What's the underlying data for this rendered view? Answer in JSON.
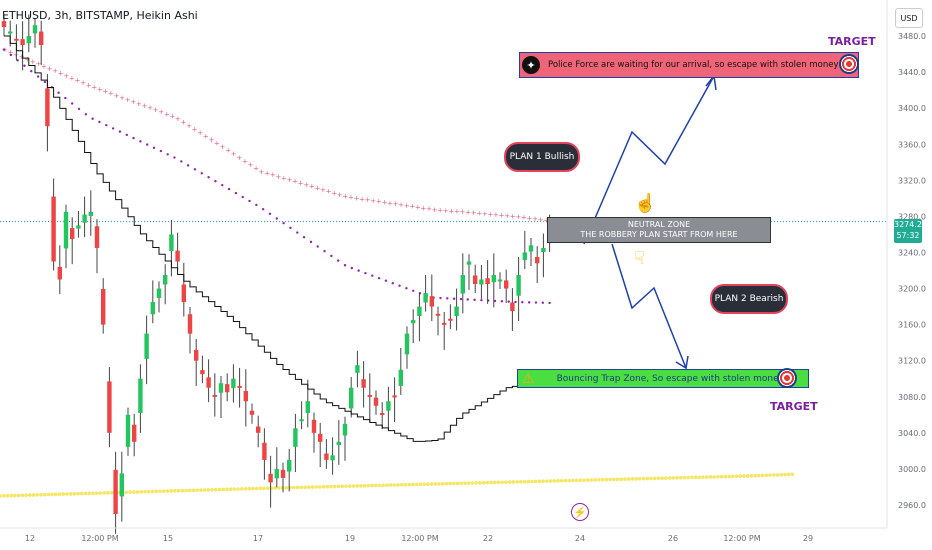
{
  "header": {
    "symbol": "ETHUSD",
    "interval": "3h",
    "exchange": "BITSTAMP",
    "chart_style": "Heikin Ashi",
    "separator": ", "
  },
  "currency": "USD",
  "price_tag": {
    "price": "3274.2",
    "countdown": "57:32"
  },
  "annotations": {
    "police_text": "Police Force are waiting for our arrival, so escape with stolen money",
    "target_top": "TARGET",
    "target_bottom": "TARGET",
    "plan1": "PLAN 1 Bullish",
    "plan2": "PLAN 2 Bearish",
    "neutral_line1": "NEUTRAL ZONE",
    "neutral_line2": "THE ROBBERY PLAN START FROM HERE",
    "trap_text": "Bouncing Trap Zone, So escape with stolen money"
  },
  "icons": {
    "robber": "robber-icon",
    "target": "target-icon",
    "hand_up": "hand-pointing-up-icon",
    "hand_down": "hand-pointing-down-icon",
    "warning": "warning-icon",
    "lightning": "lightning-icon"
  },
  "colors": {
    "up": "#26a69a",
    "bull_candle": "#22c55e",
    "bear_candle": "#ef4444",
    "ma_dots_purple": "#8e24aa",
    "ma_cross_pink": "#e0607e",
    "ma_dots_yellow": "#f5e663",
    "step_line": "#111111",
    "arrow_blue": "#1e40af",
    "police_box": "#f06478",
    "trap_box": "#4ade40",
    "neutral_box": "#8a8d94",
    "pill_bg": "#2a2e39",
    "current_price": "#22ab94"
  },
  "chart_data": {
    "type": "candlestick",
    "title": "",
    "ylim": [
      2940,
      3500
    ],
    "y_ticks": [
      2960,
      3000,
      3040,
      3080,
      3120,
      3160,
      3200,
      3240,
      3280,
      3320,
      3360,
      3400,
      3440,
      3480
    ],
    "x_ticks": [
      "12",
      "12:00 PM",
      "15",
      "17",
      "19",
      "12:00 PM",
      "22",
      "24",
      "26",
      "12:00 PM",
      "29"
    ],
    "current_price": 3274.2,
    "series_close": [
      3490,
      3485,
      3475,
      3470,
      3480,
      3492,
      3470,
      3380,
      3230,
      3210,
      3285,
      3255,
      3270,
      3282,
      3285,
      3245,
      3160,
      3040,
      2950,
      2995,
      3060,
      3030,
      3100,
      3150,
      3185,
      3200,
      3215,
      3260,
      3230,
      3185,
      3150,
      3120,
      3105,
      3090,
      3080,
      3095,
      3085,
      3100,
      3090,
      3075,
      3060,
      3040,
      3010,
      2985,
      3000,
      2990,
      3010,
      3045,
      3055,
      3075,
      3040,
      3030,
      3010,
      3015,
      3030,
      3050,
      3090,
      3115,
      3090,
      3080,
      3070,
      3060,
      3075,
      3080,
      3110,
      3150,
      3165,
      3180,
      3195,
      3180,
      3170,
      3160,
      3165,
      3180,
      3215,
      3230,
      3205,
      3210,
      3205,
      3215,
      3210,
      3200,
      3175,
      3215,
      3240,
      3248,
      3228,
      3245,
      3262
    ],
    "ma_purple_dots": [
      [
        0,
        3465
      ],
      [
        20,
        3390
      ],
      [
        40,
        3345
      ],
      [
        60,
        3290
      ],
      [
        80,
        3225
      ],
      [
        100,
        3190
      ],
      [
        120,
        3185
      ],
      [
        128,
        3184
      ]
    ],
    "ma_pink_crosses": [
      [
        0,
        3465
      ],
      [
        20,
        3425
      ],
      [
        40,
        3390
      ],
      [
        60,
        3330
      ],
      [
        80,
        3302
      ],
      [
        100,
        3288
      ],
      [
        120,
        3280
      ],
      [
        128,
        3275
      ]
    ],
    "ma_yellow_dots": [
      [
        0,
        2970
      ],
      [
        40,
        2978
      ],
      [
        80,
        2985
      ],
      [
        120,
        2992
      ],
      [
        128,
        2994
      ]
    ],
    "step_line": [
      [
        0,
        3480
      ],
      [
        10,
        3420
      ],
      [
        20,
        3330
      ],
      [
        30,
        3260
      ],
      [
        40,
        3205
      ],
      [
        50,
        3165
      ],
      [
        60,
        3115
      ],
      [
        70,
        3075
      ],
      [
        80,
        3052
      ],
      [
        90,
        3030
      ],
      [
        95,
        3032
      ],
      [
        100,
        3060
      ],
      [
        110,
        3090
      ],
      [
        120,
        3100
      ]
    ],
    "zones": {
      "neutral": [
        3253,
        3275
      ],
      "police_target": [
        3430,
        3450
      ],
      "trap_target": [
        3093,
        3107
      ]
    },
    "plan1_path": [
      [
        3253
      ],
      [
        3300
      ],
      [
        3345
      ],
      [
        3300
      ],
      [
        3430
      ]
    ],
    "plan2_path": [
      [
        3253
      ],
      [
        3215
      ],
      [
        3190
      ],
      [
        3110
      ]
    ]
  }
}
